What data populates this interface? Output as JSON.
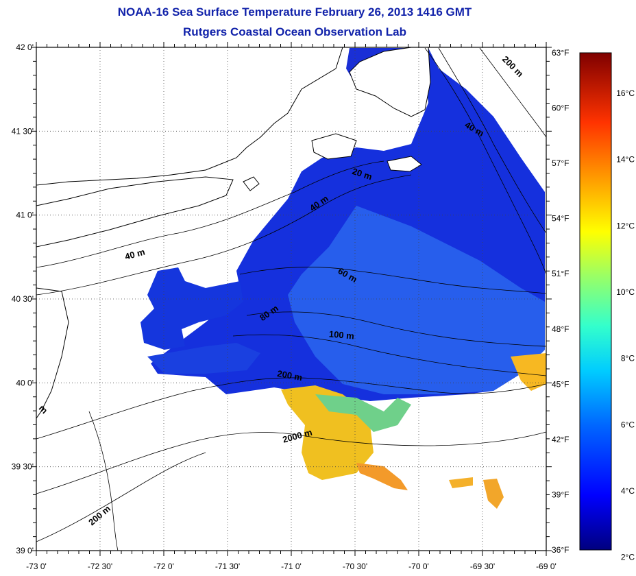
{
  "title": "NOAA-16 Sea Surface Temperature February 26, 2013 1416 GMT",
  "subtitle": "Rutgers Coastal Ocean Observation Lab",
  "map": {
    "lon_labels": [
      "-73 0'",
      "-72 30'",
      "-72 0'",
      "-71 30'",
      "-71 0'",
      "-70 30'",
      "-70 0'",
      "-69 30'",
      "-69 0'"
    ],
    "lat_labels": [
      "42 0'",
      "41 30'",
      "41 0'",
      "40 30'",
      "40 0'",
      "39 30'",
      "39 0'"
    ],
    "lon_range": [
      -73,
      -69
    ],
    "lat_range": [
      39,
      42
    ],
    "grid": "dotted"
  },
  "colorbar": {
    "f_labels": [
      "63°F",
      "60°F",
      "57°F",
      "54°F",
      "51°F",
      "48°F",
      "45°F",
      "42°F",
      "39°F",
      "36°F"
    ],
    "c_labels": [
      "16°C",
      "14°C",
      "12°C",
      "10°C",
      "8°C",
      "6°C",
      "4°C",
      "2°C"
    ]
  },
  "contours": [
    {
      "text": "200 m"
    },
    {
      "text": "40 m"
    },
    {
      "text": "20 m"
    },
    {
      "text": "40 m"
    },
    {
      "text": "40 m"
    },
    {
      "text": "60 m"
    },
    {
      "text": "80 m"
    },
    {
      "text": "100 m"
    },
    {
      "text": "200 m"
    },
    {
      "text": "2000 m"
    },
    {
      "text": "200 m"
    },
    {
      "text": "m"
    }
  ],
  "colors": {
    "title": "#1122aa",
    "land": "#ffffff",
    "cold": "#0a1fd0",
    "warm": "#f2c21a"
  }
}
